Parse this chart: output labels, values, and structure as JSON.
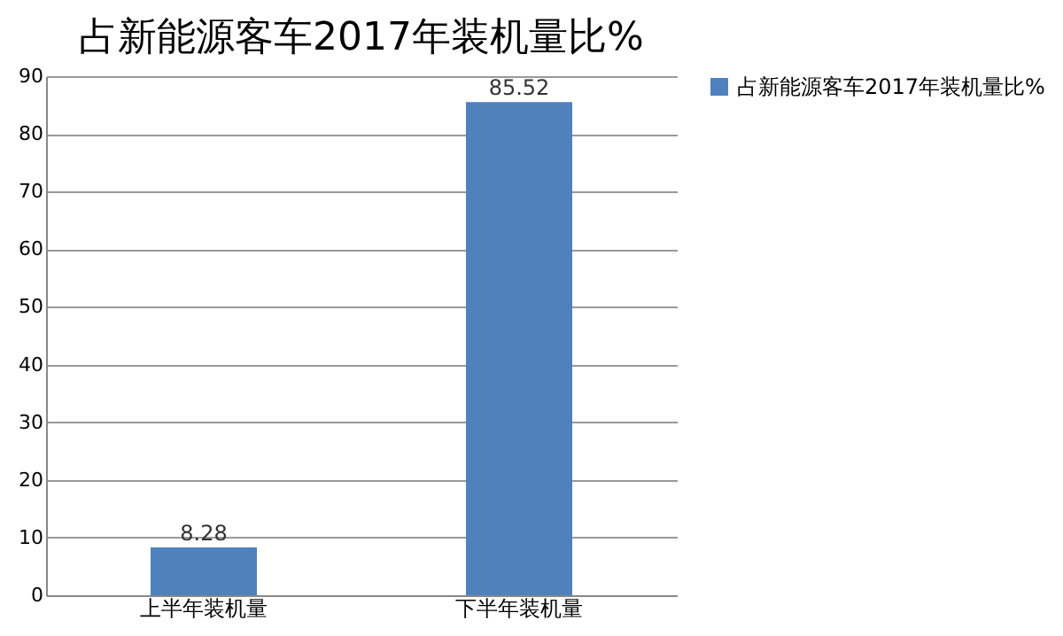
{
  "chart_data": {
    "type": "bar",
    "title": "占新能源客车2017年装机量比%",
    "categories": [
      "上半年装机量",
      "下半年装机量"
    ],
    "series": [
      {
        "name": "占新能源客车2017年装机量比%",
        "color": "#4f81bd",
        "values": [
          8.28,
          85.52
        ]
      }
    ],
    "ylim": [
      0,
      90
    ],
    "yticks": [
      0,
      10,
      20,
      30,
      40,
      50,
      60,
      70,
      80,
      90
    ],
    "grid": "y",
    "legend": "right",
    "data_labels": true
  }
}
